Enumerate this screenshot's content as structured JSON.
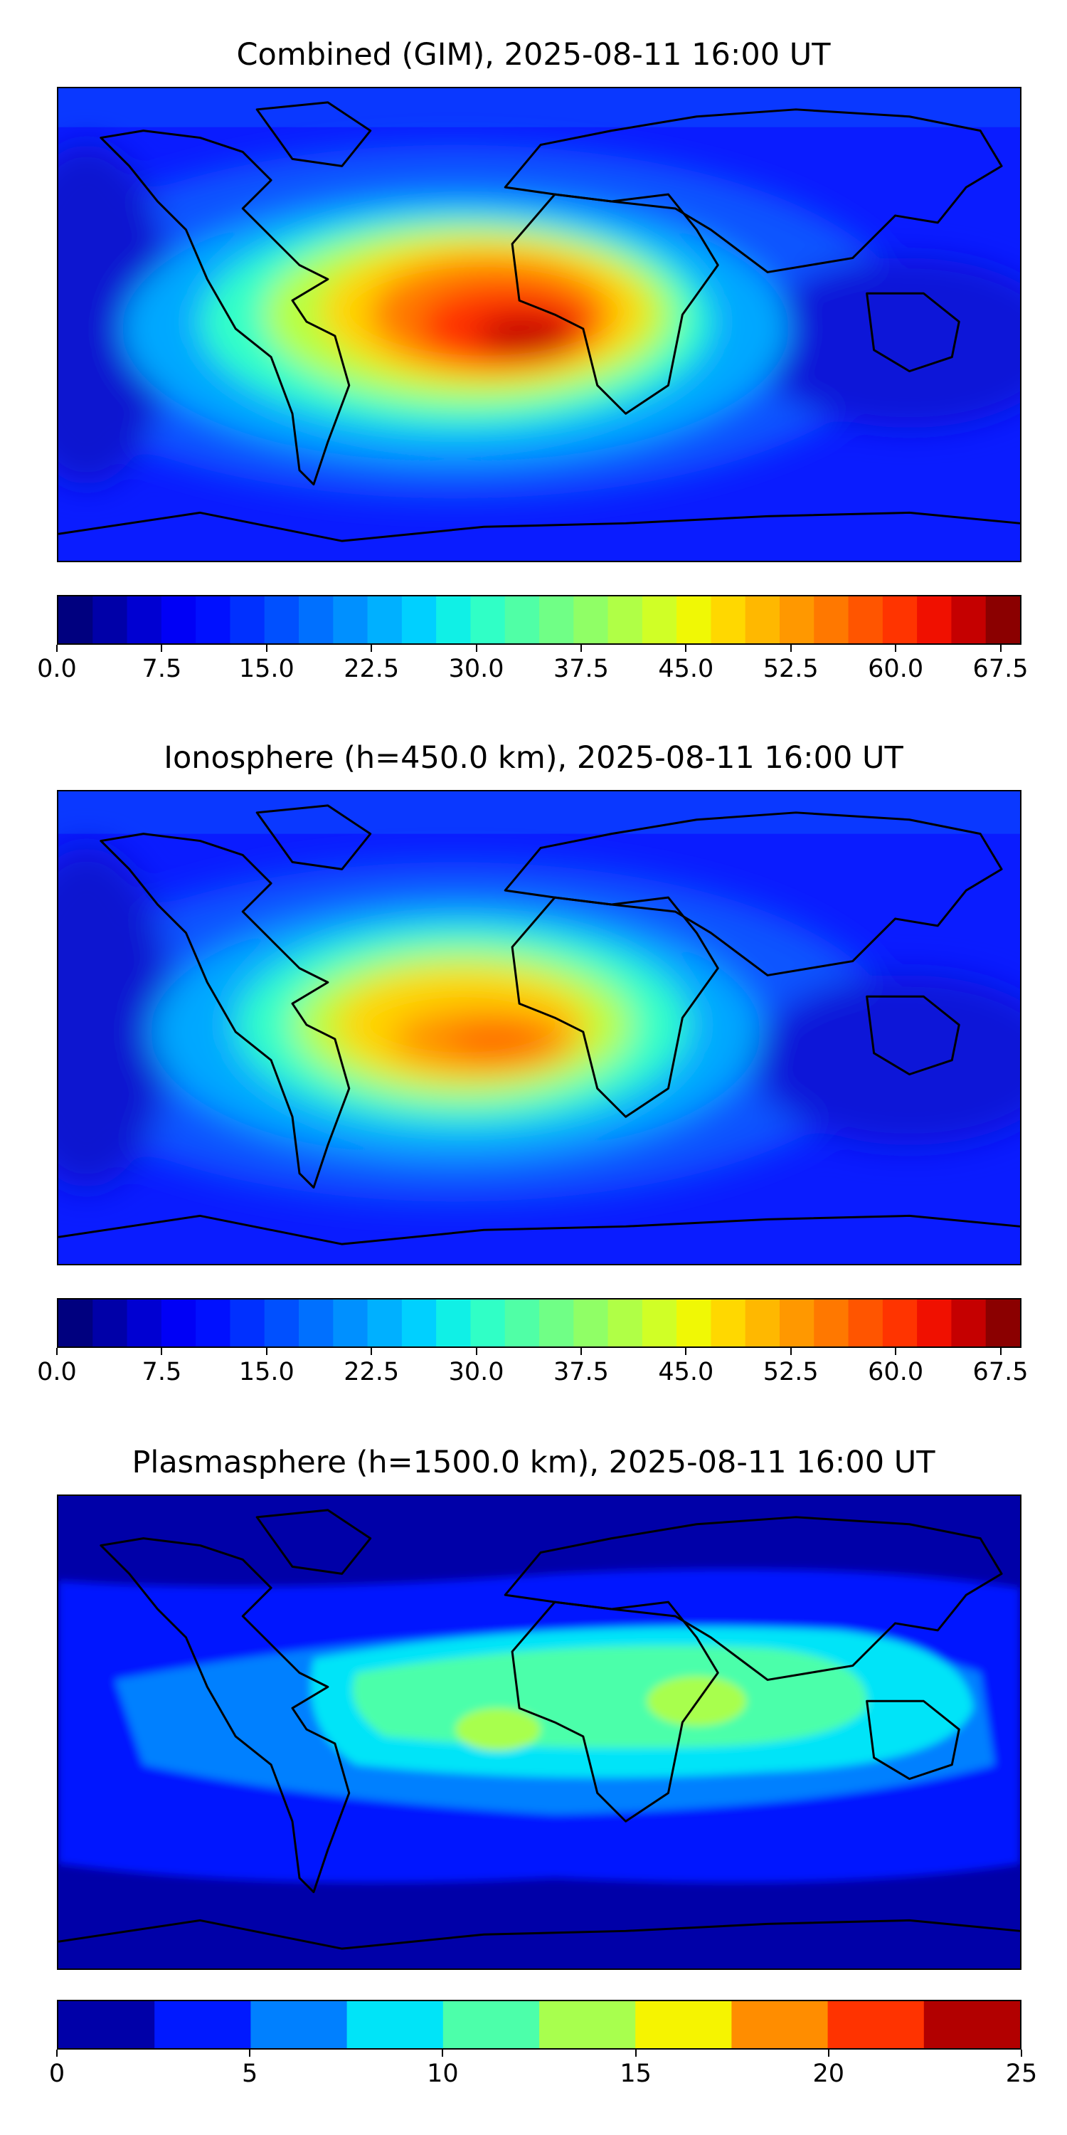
{
  "panels": [
    {
      "title": "Combined (GIM), 2025-08-11 16:00 UT",
      "colorbar": {
        "min": 0,
        "max": 69,
        "ticks": [
          0.0,
          7.5,
          15.0,
          22.5,
          30.0,
          37.5,
          45.0,
          52.5,
          60.0,
          67.5
        ],
        "tick_labels": [
          "0.0",
          "7.5",
          "15.0",
          "22.5",
          "30.0",
          "37.5",
          "45.0",
          "52.5",
          "60.0",
          "67.5"
        ],
        "colors": [
          "#00007f",
          "#0000a8",
          "#0000d2",
          "#0000f6",
          "#0010ff",
          "#0030ff",
          "#0050ff",
          "#0070ff",
          "#0090ff",
          "#00b0ff",
          "#00d0ff",
          "#10f0e6",
          "#30ffc6",
          "#50ffa6",
          "#70ff86",
          "#90ff66",
          "#b0ff46",
          "#d0ff26",
          "#f0f805",
          "#ffd800",
          "#ffb800",
          "#ff9800",
          "#ff7800",
          "#ff5500",
          "#ff3400",
          "#f01000",
          "#c50000",
          "#8b0000"
        ]
      }
    },
    {
      "title": "Ionosphere  (h=450.0 km), 2025-08-11 16:00 UT",
      "colorbar": {
        "min": 0,
        "max": 69,
        "ticks": [
          0.0,
          7.5,
          15.0,
          22.5,
          30.0,
          37.5,
          45.0,
          52.5,
          60.0,
          67.5
        ],
        "tick_labels": [
          "0.0",
          "7.5",
          "15.0",
          "22.5",
          "30.0",
          "37.5",
          "45.0",
          "52.5",
          "60.0",
          "67.5"
        ],
        "colors": [
          "#00007f",
          "#0000a8",
          "#0000d2",
          "#0000f6",
          "#0010ff",
          "#0030ff",
          "#0050ff",
          "#0070ff",
          "#0090ff",
          "#00b0ff",
          "#00d0ff",
          "#10f0e6",
          "#30ffc6",
          "#50ffa6",
          "#70ff86",
          "#90ff66",
          "#b0ff46",
          "#d0ff26",
          "#f0f805",
          "#ffd800",
          "#ffb800",
          "#ff9800",
          "#ff7800",
          "#ff5500",
          "#ff3400",
          "#f01000",
          "#c50000",
          "#8b0000"
        ]
      }
    },
    {
      "title": "Plasmasphere (h=1500.0 km), 2025-08-11 16:00 UT",
      "colorbar": {
        "min": 0,
        "max": 25,
        "ticks": [
          0,
          5,
          10,
          15,
          20,
          25
        ],
        "tick_labels": [
          "0",
          "5",
          "10",
          "15",
          "20",
          "25"
        ],
        "colors": [
          "#0000a8",
          "#0019ff",
          "#0080ff",
          "#00e4f8",
          "#4cffaa",
          "#a8ff4e",
          "#f6f400",
          "#ff8d00",
          "#ff3300",
          "#b20000"
        ]
      }
    }
  ]
}
